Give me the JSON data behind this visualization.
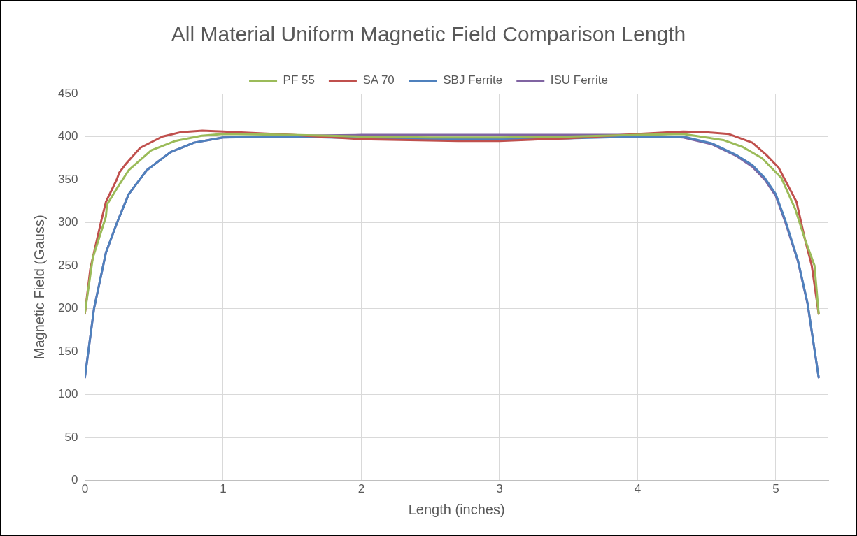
{
  "chart_data": {
    "type": "line",
    "title": "All Material Uniform Magnetic Field Comparison Length",
    "xlabel": "Length (inches)",
    "ylabel": "Magnetic Field (Gauss)",
    "xlim": [
      0,
      5.38
    ],
    "xticks": [
      0,
      1,
      2,
      3,
      4,
      5
    ],
    "ylim": [
      0,
      450
    ],
    "yticks": [
      0,
      50,
      100,
      150,
      200,
      250,
      300,
      350,
      400,
      450
    ],
    "grid": true,
    "legend": "top",
    "marker": "none",
    "line_style": "solid",
    "series": [
      {
        "name": "PF 55",
        "color": "#9bbb59",
        "x": [
          0,
          0.057,
          0.152,
          0.16,
          0.24,
          0.317,
          0.48,
          0.655,
          0.845,
          1.0,
          1.5,
          2.0,
          2.5,
          3.0,
          3.5,
          4.0,
          4.33,
          4.62,
          4.76,
          4.9,
          5.04,
          5.14,
          5.21,
          5.28,
          5.31
        ],
        "values": [
          195,
          259,
          307,
          321,
          342,
          361,
          384,
          395,
          401,
          403,
          402,
          400,
          399,
          399,
          400,
          402,
          403,
          396,
          388,
          375,
          352,
          316,
          281,
          250,
          194
        ]
      },
      {
        "name": "SA 70",
        "color": "#c0504d",
        "x": [
          0,
          0.04,
          0.118,
          0.152,
          0.23,
          0.248,
          0.29,
          0.4,
          0.56,
          0.69,
          0.85,
          1.0,
          1.5,
          2.0,
          2.7,
          3.0,
          3.5,
          4.0,
          4.33,
          4.5,
          4.66,
          4.83,
          4.93,
          5.02,
          5.15,
          5.21,
          5.26,
          5.31
        ],
        "values": [
          194,
          247,
          302,
          324,
          350,
          358,
          367,
          387,
          400,
          405,
          407,
          406,
          402,
          397,
          395,
          395,
          398,
          403,
          406,
          405,
          403,
          393,
          379,
          364,
          324,
          281,
          250,
          194
        ]
      },
      {
        "name": "SBJ Ferrite",
        "color": "#4f81bd",
        "x": [
          0,
          0.066,
          0.152,
          0.23,
          0.317,
          0.447,
          0.62,
          0.79,
          1.0,
          1.5,
          2.0,
          2.5,
          3.0,
          3.5,
          4.0,
          4.33,
          4.54,
          4.71,
          4.83,
          4.92,
          5.0,
          5.07,
          5.16,
          5.23,
          5.31
        ],
        "values": [
          120,
          200,
          265,
          299,
          333,
          361,
          382,
          393,
          399,
          400,
          398,
          397,
          397,
          398,
          400,
          400,
          392,
          379,
          367,
          352,
          333,
          302,
          256,
          206,
          120
        ]
      },
      {
        "name": "ISU Ferrite",
        "color": "#8064a2",
        "x": [
          0,
          0.066,
          0.152,
          0.23,
          0.317,
          0.447,
          0.62,
          0.79,
          1.0,
          1.5,
          2.0,
          2.5,
          3.0,
          3.5,
          4.0,
          4.33,
          4.54,
          4.71,
          4.83,
          4.92,
          5.0,
          5.07,
          5.16,
          5.23,
          5.31
        ],
        "values": [
          120,
          200,
          265,
          299,
          333,
          361,
          382,
          393,
          399,
          401,
          402,
          402,
          402,
          402,
          402,
          399,
          391,
          378,
          365,
          350,
          331,
          300,
          255,
          205,
          120
        ]
      }
    ]
  }
}
